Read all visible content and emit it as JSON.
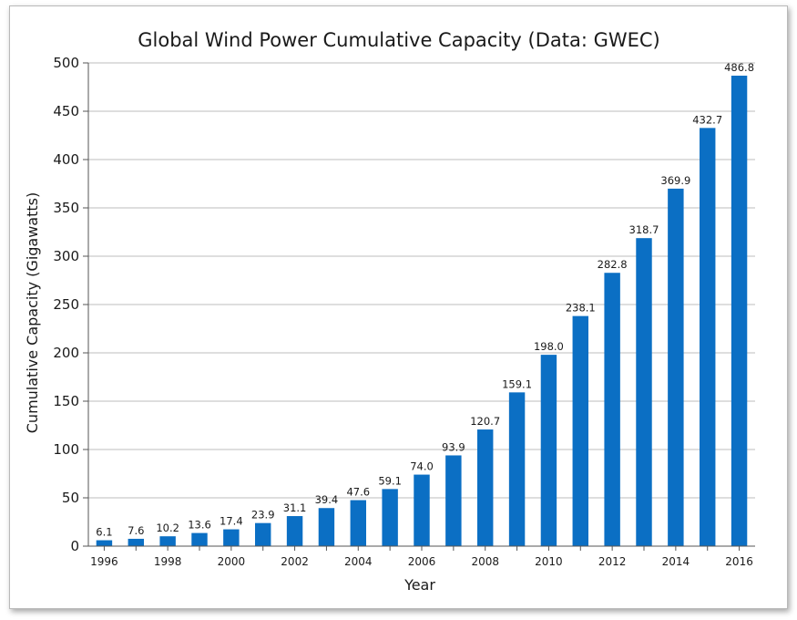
{
  "chart_data": {
    "type": "bar",
    "title": "Global Wind Power Cumulative Capacity (Data: GWEC)",
    "xlabel": "Year",
    "ylabel": "Cumulative Capacity (Gigawatts)",
    "ylim": [
      0,
      500
    ],
    "yticks": [
      0,
      50,
      100,
      150,
      200,
      250,
      300,
      350,
      400,
      450,
      500
    ],
    "grid": true,
    "bar_color": "#0b6fc4",
    "categories": [
      "1996",
      "1997",
      "1998",
      "1999",
      "2000",
      "2001",
      "2002",
      "2003",
      "2004",
      "2005",
      "2006",
      "2007",
      "2008",
      "2009",
      "2010",
      "2011",
      "2012",
      "2013",
      "2014",
      "2015",
      "2016"
    ],
    "xtick_labels": [
      "1996",
      "1998",
      "2000",
      "2002",
      "2004",
      "2006",
      "2008",
      "2010",
      "2012",
      "2014",
      "2016"
    ],
    "values": [
      6.1,
      7.6,
      10.2,
      13.6,
      17.4,
      23.9,
      31.1,
      39.4,
      47.6,
      59.1,
      74.0,
      93.9,
      120.7,
      159.1,
      198.0,
      238.1,
      282.8,
      318.7,
      369.9,
      432.7,
      486.8
    ],
    "data_labels": [
      "6.1",
      "7.6",
      "10.2",
      "13.6",
      "17.4",
      "23.9",
      "31.1",
      "39.4",
      "47.6",
      "59.1",
      "74.0",
      "93.9",
      "120.7",
      "159.1",
      "198.0",
      "238.1",
      "282.8",
      "318.7",
      "369.9",
      "432.7",
      "486.8"
    ]
  }
}
